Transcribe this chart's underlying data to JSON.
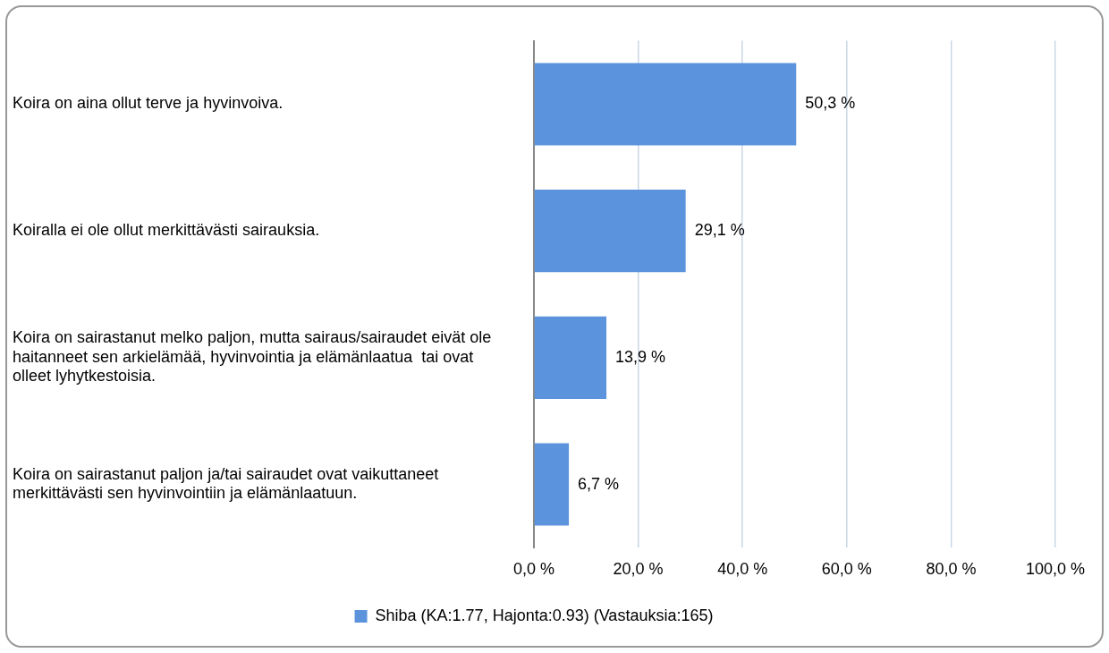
{
  "chart_data": {
    "type": "bar",
    "orientation": "horizontal",
    "categories": [
      "Koira on aina ollut terve ja hyvinvoiva.",
      "Koiralla ei ole ollut merkittävästi sairauksia.",
      "Koira on sairastanut melko paljon, mutta sairaus/sairaudet eivät ole haitanneet sen arkielämää, hyvinvointia ja elämänlaatua  tai ovat olleet lyhytkestoisia.",
      "Koira on sairastanut paljon ja/tai sairaudet ovat vaikuttaneet merkittävästi sen hyvinvointiin ja elämänlaatuun."
    ],
    "series": [
      {
        "name": "Shiba (KA:1.77, Hajonta:0.93) (Vastauksia:165)",
        "color": "#5b93dc",
        "values": [
          50.3,
          29.1,
          13.9,
          6.7
        ],
        "value_labels": [
          "50,3 %",
          "29,1 %",
          "13,9 %",
          "6,7 %"
        ]
      }
    ],
    "xlim": [
      0,
      100
    ],
    "xticks": [
      {
        "value": 0,
        "label": "0,0 %"
      },
      {
        "value": 20,
        "label": "20,0 %"
      },
      {
        "value": 40,
        "label": "40,0 %"
      },
      {
        "value": 60,
        "label": "60,0 %"
      },
      {
        "value": 80,
        "label": "80,0 %"
      },
      {
        "value": 100,
        "label": "100,0 %"
      }
    ],
    "grid": "x",
    "legend": "bottom"
  }
}
